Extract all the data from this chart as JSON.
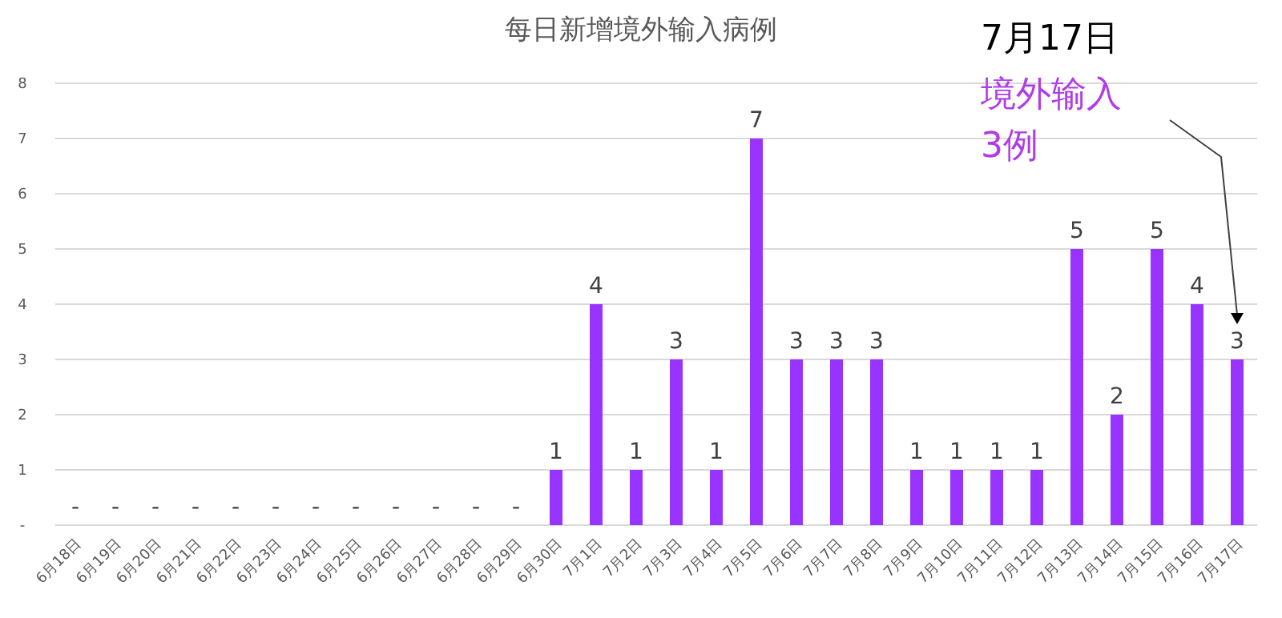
{
  "chart_data": {
    "type": "bar",
    "title": "每日新增境外输入病例",
    "categories": [
      "6月18日",
      "6月19日",
      "6月20日",
      "6月21日",
      "6月22日",
      "6月23日",
      "6月24日",
      "6月25日",
      "6月26日",
      "6月27日",
      "6月28日",
      "6月29日",
      "6月30日",
      "7月1日",
      "7月2日",
      "7月3日",
      "7月4日",
      "7月5日",
      "7月6日",
      "7月7日",
      "7月8日",
      "7月9日",
      "7月10日",
      "7月11日",
      "7月12日",
      "7月13日",
      "7月14日",
      "7月15日",
      "7月16日",
      "7月17日"
    ],
    "values": [
      0,
      0,
      0,
      0,
      0,
      0,
      0,
      0,
      0,
      0,
      0,
      0,
      1,
      4,
      1,
      3,
      1,
      7,
      3,
      3,
      3,
      1,
      1,
      1,
      1,
      5,
      2,
      5,
      4,
      3
    ],
    "value_labels": [
      "-",
      "-",
      "-",
      "-",
      "-",
      "-",
      "-",
      "-",
      "-",
      "-",
      "-",
      "-",
      "1",
      "4",
      "1",
      "3",
      "1",
      "7",
      "3",
      "3",
      "3",
      "1",
      "1",
      "1",
      "1",
      "5",
      "2",
      "5",
      "4",
      "3"
    ],
    "color": "#9933ff",
    "ylim": [
      0,
      8
    ],
    "yticks": [
      {
        "value": 0,
        "label": "-"
      },
      1,
      2,
      3,
      4,
      5,
      6,
      7,
      8
    ],
    "grid": "y",
    "annotations": [
      "7月17日",
      "境外输入\n3例"
    ]
  }
}
